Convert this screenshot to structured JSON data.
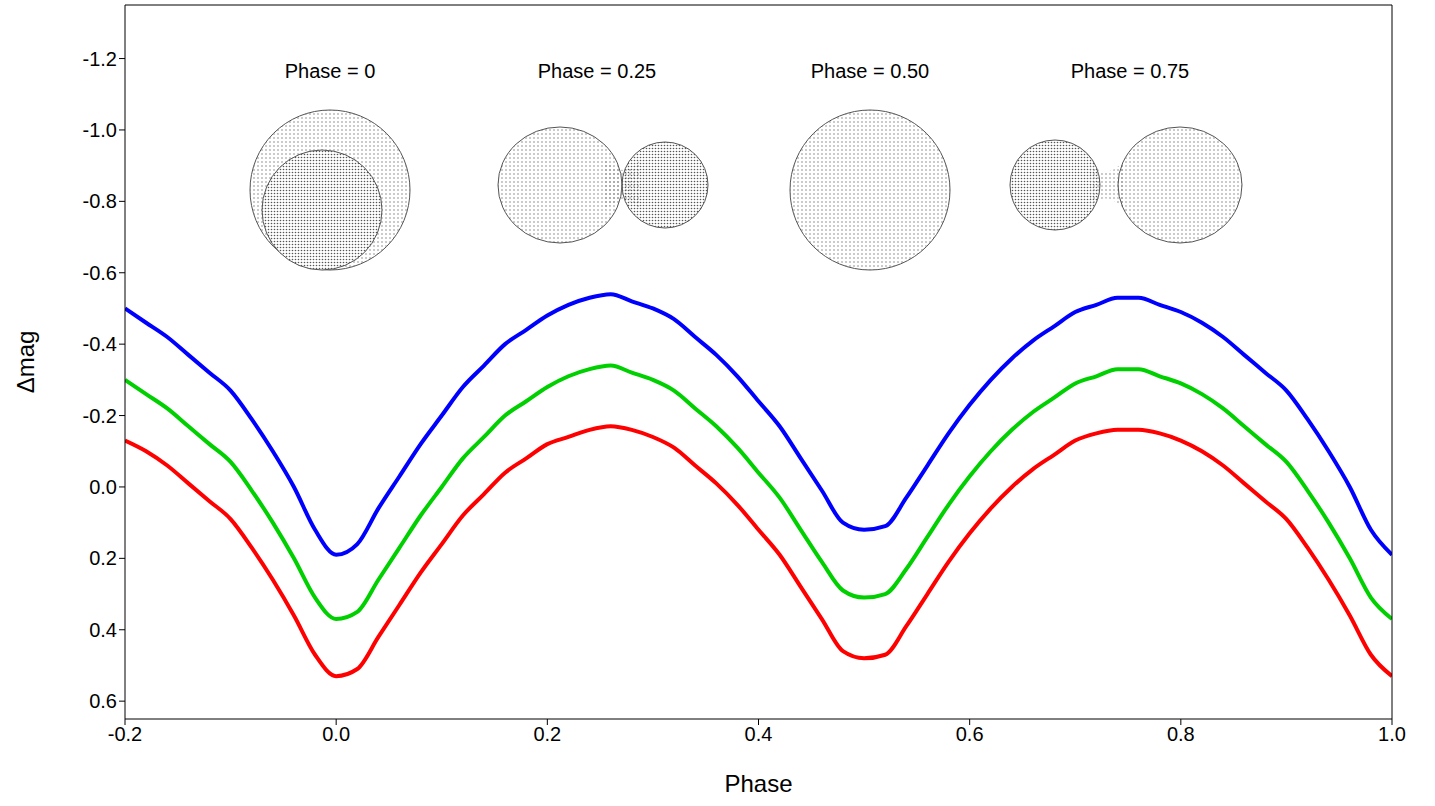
{
  "chart_data": {
    "type": "line",
    "x_label": "Phase",
    "y_label": "Δmag",
    "annotations": [
      "Phase = 0",
      "Phase = 0.25",
      "Phase = 0.50",
      "Phase = 0.75"
    ],
    "xlim": [
      -0.2,
      1.0
    ],
    "xticks": [
      -0.2,
      {
        "value": 0,
        "label": "0.0"
      },
      0.2,
      0.4,
      0.6,
      0.8,
      {
        "value": 1,
        "label": "1.0"
      }
    ],
    "ylim": [
      -1.35,
      0.65
    ],
    "yticks": [
      -1.2,
      {
        "value": -1,
        "label": "-1.0"
      },
      -0.8,
      -0.6,
      -0.4,
      -0.2,
      {
        "value": 0,
        "label": "0.0"
      },
      0.2,
      0.4,
      0.6
    ],
    "x": [
      -0.2,
      -0.18,
      -0.16,
      -0.14,
      -0.12,
      -0.1,
      -0.08,
      -0.06,
      -0.04,
      -0.02,
      0,
      0.02,
      0.04,
      0.06,
      0.08,
      0.1,
      0.12,
      0.14,
      0.16,
      0.18,
      0.2,
      0.22,
      0.24,
      0.26,
      0.28,
      0.3,
      0.32,
      0.34,
      0.36,
      0.38,
      0.4,
      0.42,
      0.44,
      0.46,
      0.48,
      0.5,
      0.52,
      0.54,
      0.56,
      0.58,
      0.6,
      0.62,
      0.64,
      0.66,
      0.68,
      0.7,
      0.72,
      0.74,
      0.76,
      0.78,
      0.8,
      0.82,
      0.84,
      0.86,
      0.88,
      0.9,
      0.92,
      0.94,
      0.96,
      0.98,
      1.0
    ],
    "series": [
      {
        "color": "#0000ff",
        "values": [
          -0.5,
          -0.46,
          -0.42,
          -0.37,
          -0.32,
          -0.27,
          -0.19,
          -0.1,
          0.0,
          0.12,
          0.19,
          0.16,
          0.06,
          -0.03,
          -0.12,
          -0.2,
          -0.28,
          -0.34,
          -0.4,
          -0.44,
          -0.48,
          -0.51,
          -0.53,
          -0.54,
          -0.52,
          -0.5,
          -0.47,
          -0.42,
          -0.37,
          -0.31,
          -0.24,
          -0.17,
          -0.08,
          0.01,
          0.1,
          0.12,
          0.11,
          0.03,
          -0.06,
          -0.15,
          -0.23,
          -0.3,
          -0.36,
          -0.41,
          -0.45,
          -0.49,
          -0.51,
          -0.53,
          -0.53,
          -0.51,
          -0.49,
          -0.46,
          -0.42,
          -0.37,
          -0.32,
          -0.27,
          -0.19,
          -0.1,
          0.0,
          0.12,
          0.19
        ]
      },
      {
        "color": "#00d000",
        "values": [
          -0.3,
          -0.26,
          -0.22,
          -0.17,
          -0.12,
          -0.07,
          0.01,
          0.1,
          0.2,
          0.31,
          0.37,
          0.35,
          0.26,
          0.17,
          0.08,
          0.0,
          -0.08,
          -0.14,
          -0.2,
          -0.24,
          -0.28,
          -0.31,
          -0.33,
          -0.34,
          -0.32,
          -0.3,
          -0.27,
          -0.22,
          -0.17,
          -0.11,
          -0.04,
          0.03,
          0.12,
          0.21,
          0.29,
          0.31,
          0.3,
          0.23,
          0.14,
          0.05,
          -0.03,
          -0.1,
          -0.16,
          -0.21,
          -0.25,
          -0.29,
          -0.31,
          -0.33,
          -0.33,
          -0.31,
          -0.29,
          -0.26,
          -0.22,
          -0.17,
          -0.12,
          -0.07,
          0.01,
          0.1,
          0.2,
          0.31,
          0.37
        ]
      },
      {
        "color": "#ff0000",
        "values": [
          -0.13,
          -0.1,
          -0.06,
          -0.01,
          0.04,
          0.09,
          0.17,
          0.26,
          0.36,
          0.47,
          0.53,
          0.51,
          0.42,
          0.33,
          0.24,
          0.16,
          0.08,
          0.02,
          -0.04,
          -0.08,
          -0.12,
          -0.14,
          -0.16,
          -0.17,
          -0.16,
          -0.14,
          -0.11,
          -0.06,
          -0.01,
          0.05,
          0.12,
          0.19,
          0.28,
          0.37,
          0.46,
          0.48,
          0.47,
          0.39,
          0.3,
          0.21,
          0.13,
          0.06,
          0.0,
          -0.05,
          -0.09,
          -0.13,
          -0.15,
          -0.16,
          -0.16,
          -0.15,
          -0.13,
          -0.1,
          -0.06,
          -0.01,
          0.04,
          0.09,
          0.17,
          0.26,
          0.36,
          0.47,
          0.53
        ]
      }
    ]
  }
}
